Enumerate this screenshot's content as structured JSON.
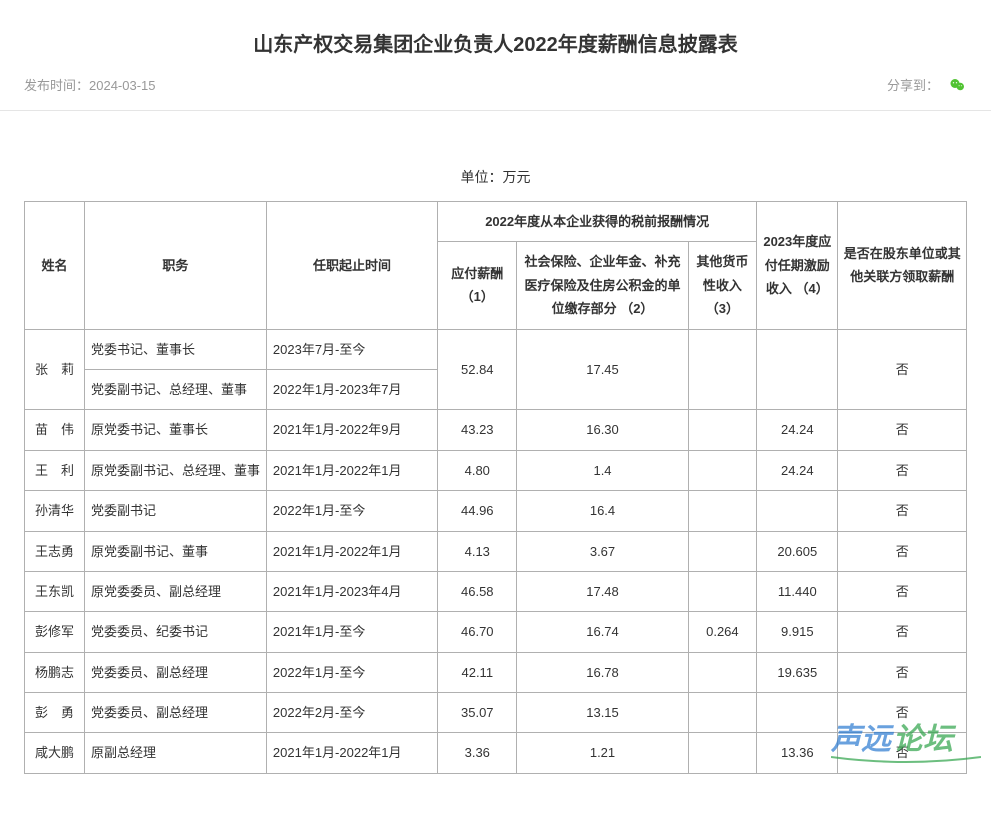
{
  "title": "山东产权交易集团企业负责人2022年度薪酬信息披露表",
  "meta": {
    "publish_label": "发布时间：",
    "publish_date": "2024-03-15",
    "share_label": "分享到："
  },
  "unit_line": "单位：万元",
  "table": {
    "header": {
      "name": "姓名",
      "position": "职务",
      "term": "任职起止时间",
      "group_2022": "2022年度从本企业获得的税前报酬情况",
      "c1": "应付薪酬\n（1）",
      "c2": "社会保险、企业年金、补充医疗保险及住房公积金的单位缴存部分\n（2）",
      "c3": "其他货币性收入\n（3）",
      "c4": "2023年度应付任期激励收入\n（4）",
      "c5": "是否在股东单位或其他关联方领取薪酬"
    },
    "rows": [
      {
        "name": "张　莉",
        "positions": [
          {
            "pos": "党委书记、董事长",
            "term": "2023年7月-至今"
          },
          {
            "pos": "党委副书记、总经理、董事",
            "term": "2022年1月-2023年7月"
          }
        ],
        "c1": "52.84",
        "c2": "17.45",
        "c3": "",
        "c4": "",
        "c5": "否"
      },
      {
        "name": "苗　伟",
        "pos": "原党委书记、董事长",
        "term": "2021年1月-2022年9月",
        "c1": "43.23",
        "c2": "16.30",
        "c3": "",
        "c4": "24.24",
        "c5": "否"
      },
      {
        "name": "王　利",
        "pos": "原党委副书记、总经理、董事",
        "term": "2021年1月-2022年1月",
        "c1": "4.80",
        "c2": "1.4",
        "c3": "",
        "c4": "24.24",
        "c5": "否"
      },
      {
        "name": "孙清华",
        "pos": "党委副书记",
        "term": "2022年1月-至今",
        "c1": "44.96",
        "c2": "16.4",
        "c3": "",
        "c4": "",
        "c5": "否"
      },
      {
        "name": "王志勇",
        "pos": "原党委副书记、董事",
        "term": "2021年1月-2022年1月",
        "c1": "4.13",
        "c2": "3.67",
        "c3": "",
        "c4": "20.605",
        "c5": "否"
      },
      {
        "name": "王东凯",
        "pos": "原党委委员、副总经理",
        "term": "2021年1月-2023年4月",
        "c1": "46.58",
        "c2": "17.48",
        "c3": "",
        "c4": "11.440",
        "c5": "否"
      },
      {
        "name": "彭修军",
        "pos": "党委委员、纪委书记",
        "term": "2021年1月-至今",
        "c1": "46.70",
        "c2": "16.74",
        "c3": "0.264",
        "c4": "9.915",
        "c5": "否"
      },
      {
        "name": "杨鹏志",
        "pos": "党委委员、副总经理",
        "term": "2022年1月-至今",
        "c1": "42.11",
        "c2": "16.78",
        "c3": "",
        "c4": "19.635",
        "c5": "否"
      },
      {
        "name": "彭　勇",
        "pos": "党委委员、副总经理",
        "term": "2022年2月-至今",
        "c1": "35.07",
        "c2": "13.15",
        "c3": "",
        "c4": "",
        "c5": "否"
      },
      {
        "name": "咸大鹏",
        "pos": "原副总经理",
        "term": "2021年1月-2022年1月",
        "c1": "3.36",
        "c2": "1.21",
        "c3": "",
        "c4": "13.36",
        "c5": "否"
      }
    ]
  },
  "style": {
    "border_color": "#b0b0b0",
    "text_color": "#333333",
    "muted_color": "#999999",
    "wechat_green": "#51c332",
    "watermark_blue": "#2a7ad1",
    "watermark_green": "#2fa34a"
  }
}
